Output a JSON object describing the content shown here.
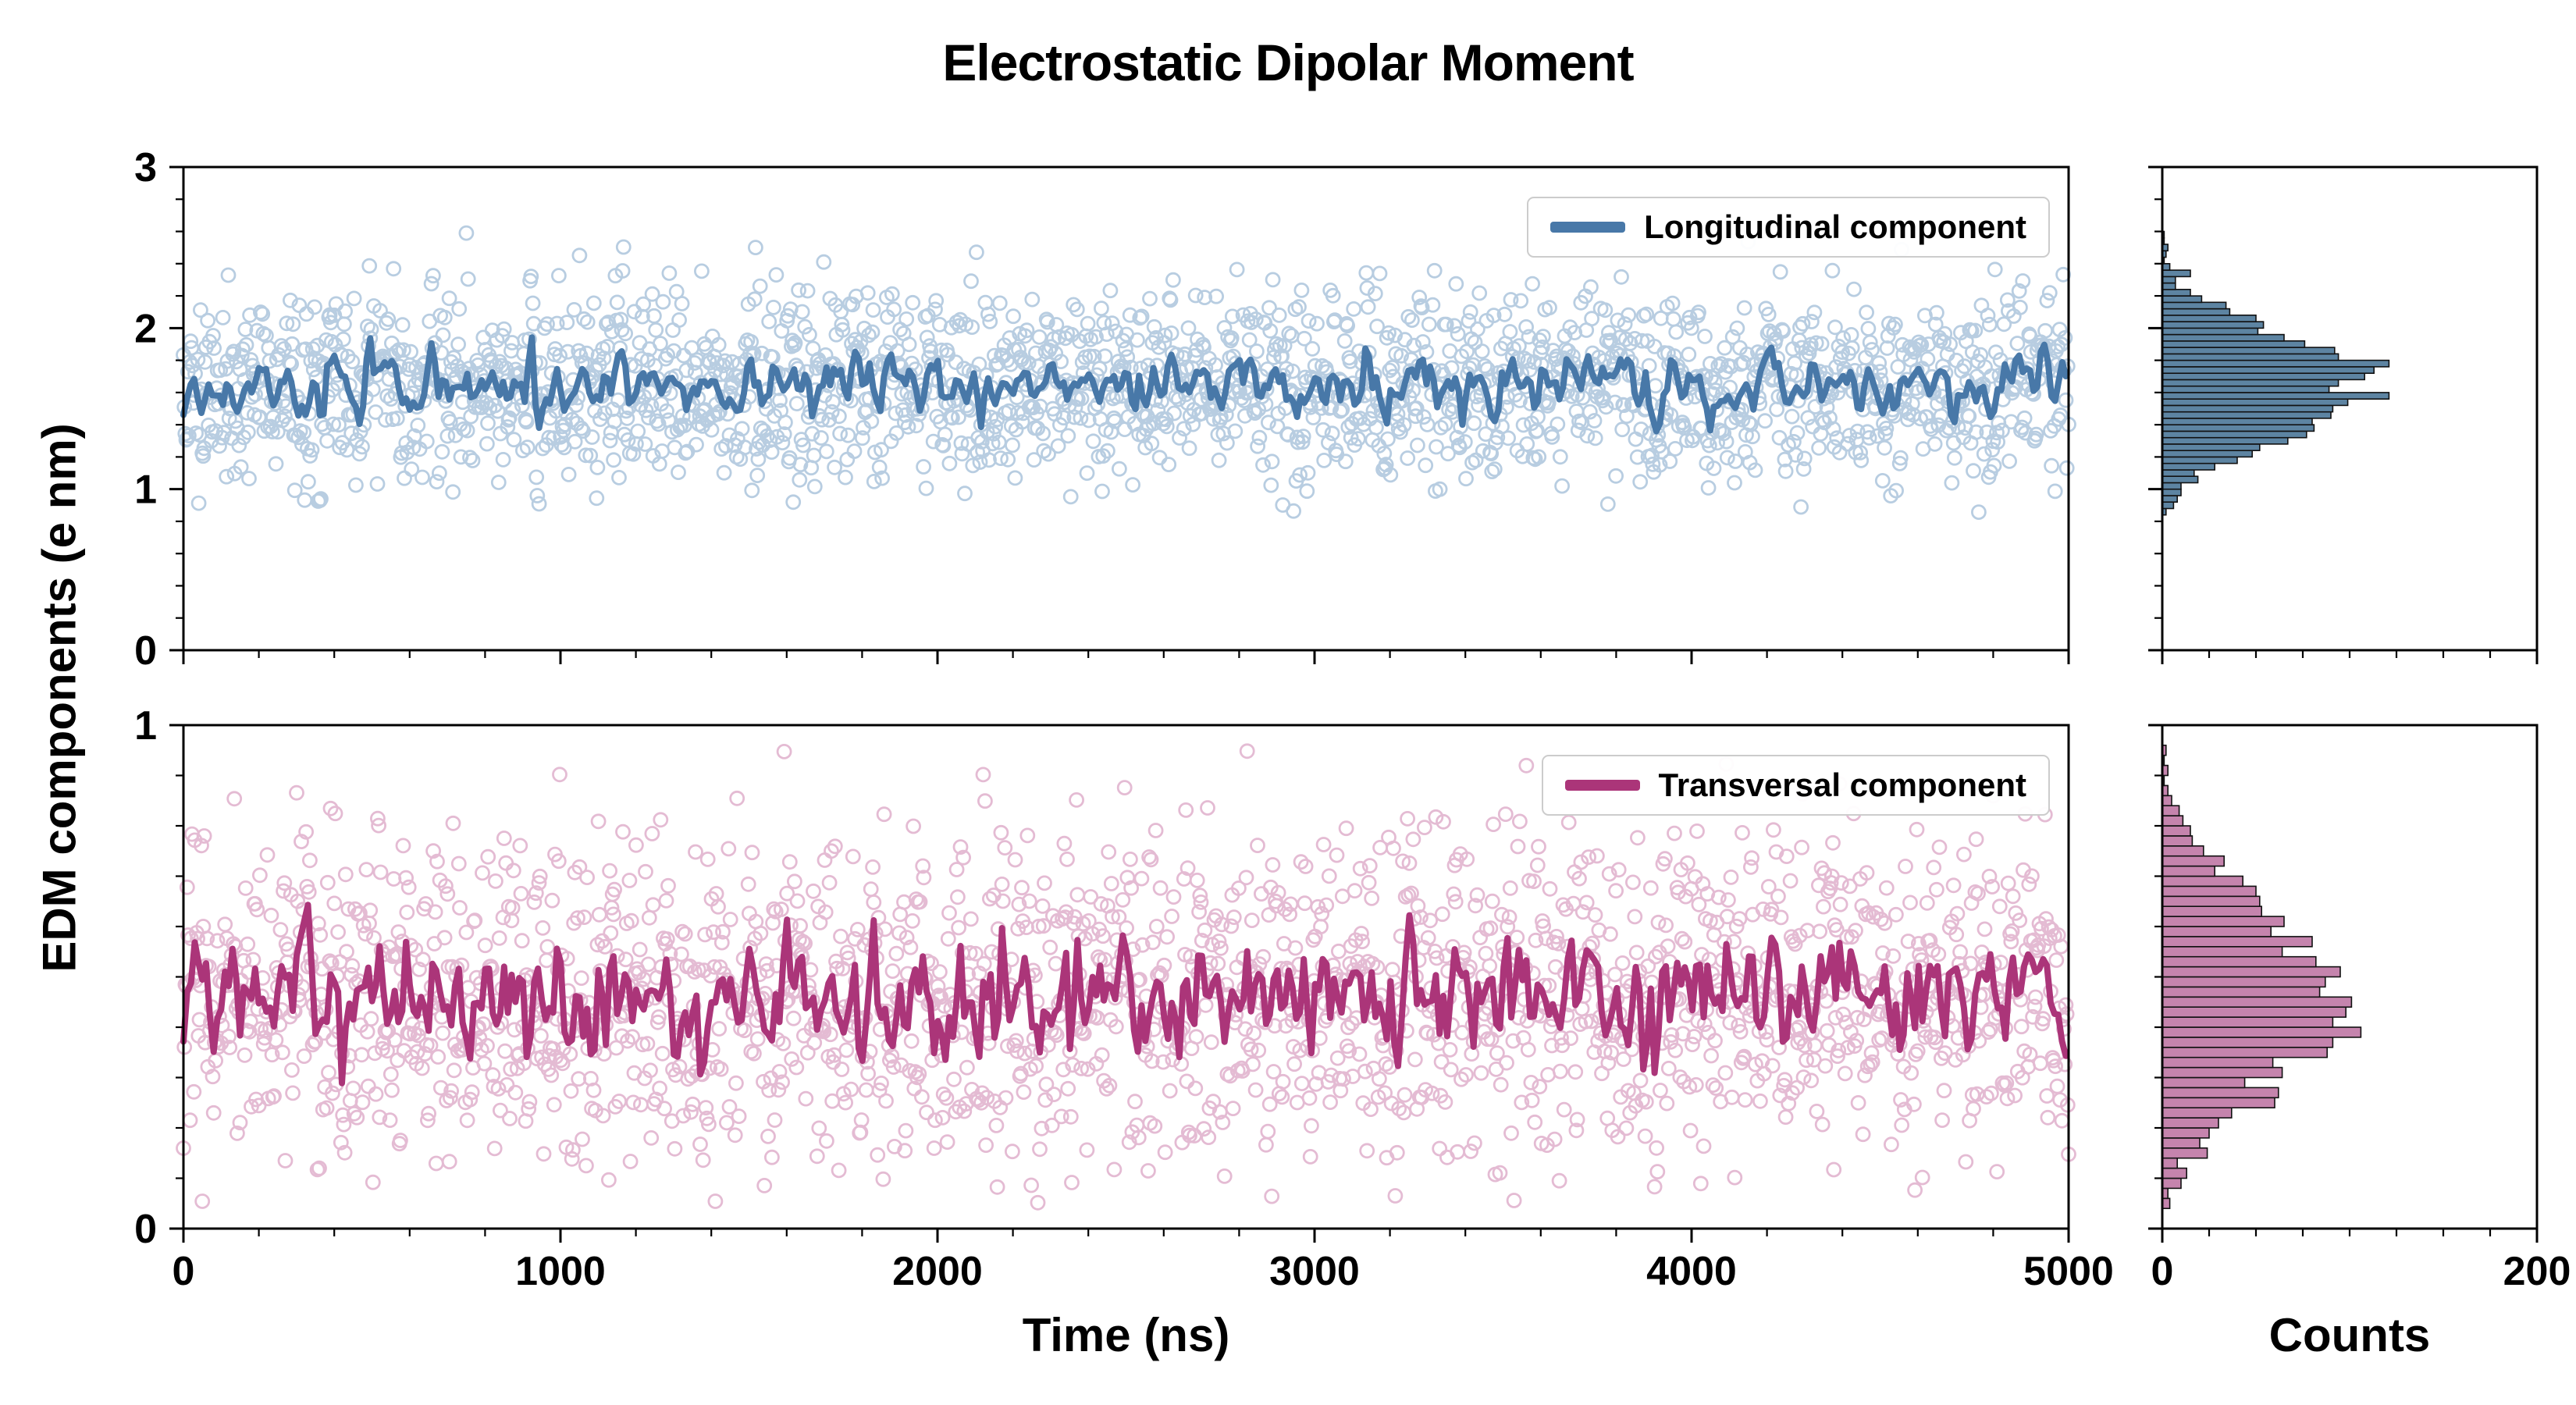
{
  "title": "Electrostatic Dipolar Moment",
  "xlabel": "Time (ns)",
  "ylabel": "EDM components (e nm)",
  "counts_label": "Counts",
  "chart_data": [
    {
      "type": "scatter",
      "name": "Longitudinal component",
      "x": {
        "label": "Time (ns)",
        "range": [
          0,
          5000
        ],
        "ticks": [
          0,
          1000,
          2000,
          3000,
          4000,
          5000
        ],
        "minor_step": 200
      },
      "y": {
        "label": "EDM components (e nm)",
        "range": [
          0,
          3
        ],
        "ticks": [
          0,
          1,
          2,
          3
        ],
        "minor_step": 0.2
      },
      "n_points": 2100,
      "distribution": {
        "shape": "gaussian",
        "mean": 1.63,
        "std": 0.3,
        "min": 0.85,
        "max": 2.6
      },
      "trend_line": {
        "type": "running-mean",
        "window": 9,
        "approx_level": 1.63
      },
      "histogram": {
        "orientation": "horizontal",
        "bin_width": 0.04,
        "counts_range": [
          0,
          200
        ],
        "counts_ticks": [
          0,
          200
        ],
        "minor_step": 25,
        "approx_peak_count": 110
      },
      "style": {
        "line_color": "#4878a8",
        "marker_color": "#7fa6c9",
        "marker_opacity": 0.55,
        "hist_fill": "#5d84a2"
      },
      "seed": 1337
    },
    {
      "type": "scatter",
      "name": "Transversal component",
      "x": {
        "label": "Time (ns)",
        "range": [
          0,
          5000
        ],
        "ticks": [
          0,
          1000,
          2000,
          3000,
          4000,
          5000
        ],
        "minor_step": 200
      },
      "y": {
        "label": "EDM components (e nm)",
        "range": [
          0,
          1
        ],
        "ticks": [
          0,
          1
        ],
        "minor_step": 0.1
      },
      "n_points": 2000,
      "distribution": {
        "shape": "gaussian",
        "mean": 0.46,
        "std": 0.17,
        "min": 0.05,
        "max": 0.97
      },
      "trend_line": {
        "type": "running-mean",
        "window": 7,
        "approx_level": 0.46
      },
      "histogram": {
        "orientation": "horizontal",
        "bin_width": 0.02,
        "counts_range": [
          0,
          200
        ],
        "counts_ticks": [
          0,
          200
        ],
        "minor_step": 25,
        "approx_peak_count": 95
      },
      "style": {
        "line_color": "#ab3579",
        "marker_color": "#c46a9f",
        "marker_opacity": 0.45,
        "hist_fill": "#c584ad"
      },
      "seed": 24601
    }
  ]
}
